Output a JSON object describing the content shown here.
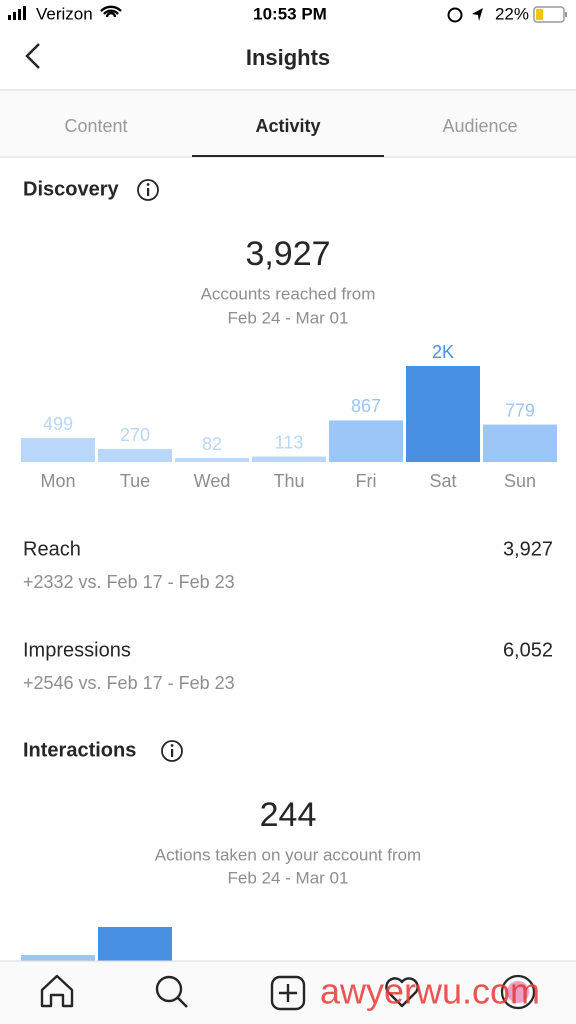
{
  "status_bar": {
    "carrier": "Verizon",
    "time": "10:53 PM",
    "battery": "22%"
  },
  "header": {
    "title": "Insights"
  },
  "tabs": [
    "Content",
    "Activity",
    "Audience"
  ],
  "active_tab": 1,
  "discovery": {
    "title": "Discovery",
    "total": "3,927",
    "caption": "Accounts reached from",
    "date_range": "Feb 24 - Mar 01"
  },
  "chart_data": {
    "type": "bar",
    "categories": [
      "Mon",
      "Tue",
      "Wed",
      "Thu",
      "Fri",
      "Sat",
      "Sun"
    ],
    "values": [
      499,
      270,
      82,
      113,
      867,
      2000,
      779
    ],
    "value_labels": [
      "499",
      "270",
      "82",
      "113",
      "867",
      "2K",
      "779"
    ],
    "colors": [
      "#b9d7fb",
      "#b9d7fb",
      "#b9d7fb",
      "#b9d7fb",
      "#9cc6f7",
      "#4a90e2",
      "#9cc6f7"
    ]
  },
  "metrics": [
    {
      "label": "Reach",
      "value": "3,927",
      "comparison": "+2332 vs. Feb 17 - Feb 23"
    },
    {
      "label": "Impressions",
      "value": "6,052",
      "comparison": "+2546 vs. Feb 17 - Feb 23"
    }
  ],
  "interactions": {
    "title": "Interactions",
    "total": "244",
    "caption": "Actions taken on your account from",
    "date_range": "Feb 24 - Mar 01"
  },
  "watermark": "awyerwu.com"
}
